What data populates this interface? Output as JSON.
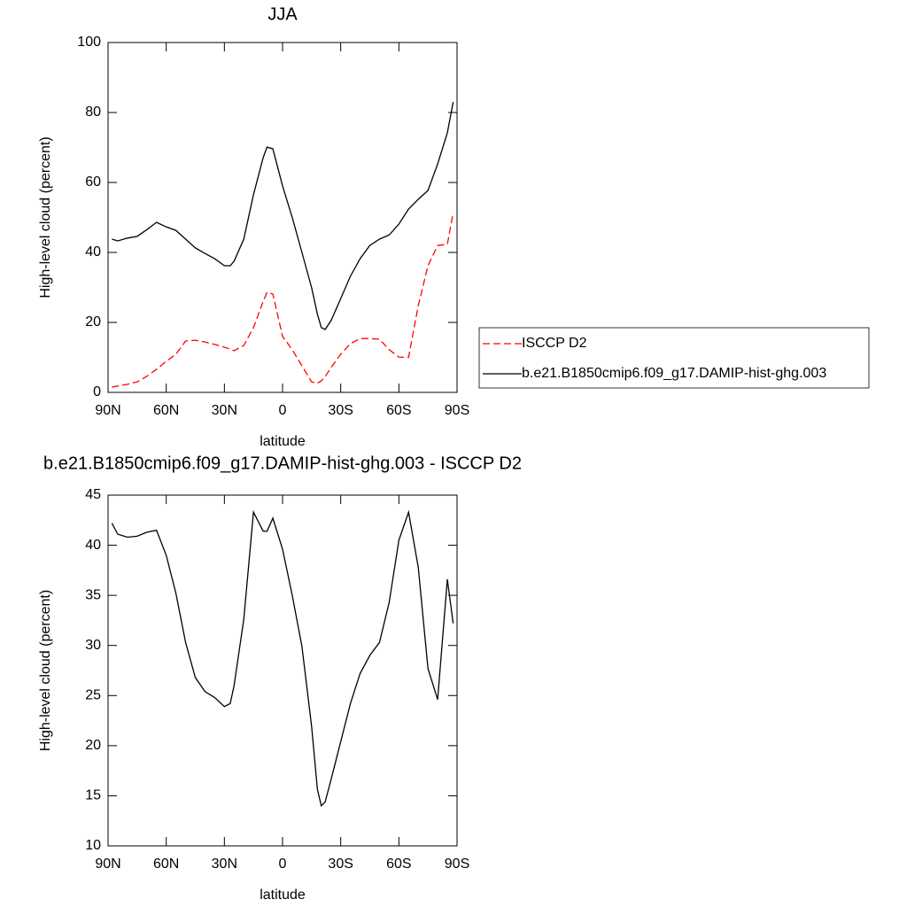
{
  "chart_data": [
    {
      "type": "line",
      "title": "JJA",
      "x_label": "latitude",
      "y_label": "High-level cloud (percent)",
      "x": [
        88,
        85,
        80,
        75,
        70,
        65,
        60,
        55,
        50,
        45,
        40,
        35,
        30,
        27,
        25,
        20,
        15,
        10,
        8,
        5,
        0,
        -5,
        -10,
        -15,
        -18,
        -20,
        -22,
        -25,
        -30,
        -35,
        -40,
        -45,
        -50,
        -55,
        -60,
        -65,
        -70,
        -75,
        -80,
        -85,
        -88
      ],
      "series": [
        {
          "name": "ISCCP D2",
          "color": "#ff0000",
          "line_style": "dashed",
          "values": [
            1.5,
            1.8,
            2.3,
            3,
            4.6,
            6.6,
            8.9,
            10.9,
            14.7,
            14.9,
            14.4,
            13.7,
            12.9,
            12.4,
            11.9,
            13.4,
            18.5,
            26,
            28.6,
            28.1,
            16,
            12.2,
            7.6,
            3,
            2.6,
            3.3,
            4.5,
            7.1,
            10.9,
            13.9,
            15.4,
            15.4,
            15.2,
            12.2,
            10.1,
            10,
            24.8,
            36.2,
            42,
            42.3,
            51.4
          ]
        },
        {
          "name": "b.e21.B1850cmip6.f09_g17.DAMIP-hist-ghg.003",
          "color": "#000000",
          "line_style": "solid",
          "values": [
            43.8,
            43.3,
            44.1,
            44.6,
            46.5,
            48.6,
            47.3,
            46.3,
            43.8,
            41.3,
            39.7,
            38.2,
            36.2,
            36.2,
            37.5,
            43.8,
            56.5,
            67.1,
            70.1,
            69.6,
            59,
            50,
            40,
            29.9,
            22.3,
            18.5,
            18,
            20.5,
            26.8,
            33.2,
            38.2,
            42,
            43.8,
            45,
            48.1,
            52.4,
            55.2,
            57.7,
            65.3,
            74.2,
            83
          ]
        }
      ],
      "xlim": [
        90,
        -90
      ],
      "xticks": [
        {
          "value": 90,
          "label": "90N"
        },
        {
          "value": 60,
          "label": "60N"
        },
        {
          "value": 30,
          "label": "30N"
        },
        0,
        {
          "value": -30,
          "label": "30S"
        },
        {
          "value": -60,
          "label": "60S"
        },
        {
          "value": -90,
          "label": "90S"
        }
      ],
      "ylim": [
        0,
        100
      ],
      "yticks": [
        0,
        20,
        40,
        60,
        80,
        100
      ],
      "legend": "right"
    },
    {
      "type": "line",
      "title": "b.e21.B1850cmip6.f09_g17.DAMIP-hist-ghg.003 - ISCCP D2",
      "x_label": "latitude",
      "y_label": "High-level cloud (percent)",
      "x": [
        88,
        85,
        80,
        75,
        70,
        65,
        60,
        55,
        50,
        45,
        40,
        35,
        30,
        27,
        25,
        20,
        15,
        10,
        8,
        5,
        0,
        -5,
        -10,
        -15,
        -18,
        -20,
        -22,
        -25,
        -30,
        -35,
        -40,
        -45,
        -50,
        -55,
        -60,
        -65,
        -70,
        -75,
        -80,
        -85,
        -88
      ],
      "series": [
        {
          "color": "#000000",
          "line_style": "solid",
          "values": [
            42.2,
            41.1,
            40.8,
            40.9,
            41.3,
            41.5,
            39,
            35.2,
            30.3,
            26.8,
            25.4,
            24.8,
            23.9,
            24.2,
            26,
            32.6,
            43.3,
            41.4,
            41.4,
            42.7,
            39.6,
            35,
            29.9,
            21.9,
            15.6,
            14,
            14.4,
            16.6,
            20.4,
            24.2,
            27.2,
            29,
            30.3,
            34.3,
            40.5,
            43.3,
            37.8,
            27.7,
            24.6,
            36.6,
            32.2
          ]
        }
      ],
      "xlim": [
        90,
        -90
      ],
      "xticks": [
        {
          "value": 90,
          "label": "90N"
        },
        {
          "value": 60,
          "label": "60N"
        },
        {
          "value": 30,
          "label": "30N"
        },
        0,
        {
          "value": -30,
          "label": "30S"
        },
        {
          "value": -60,
          "label": "60S"
        },
        {
          "value": -90,
          "label": "90S"
        }
      ],
      "ylim": [
        10,
        45
      ],
      "yticks": [
        10,
        15,
        20,
        25,
        30,
        35,
        40,
        45
      ]
    }
  ]
}
